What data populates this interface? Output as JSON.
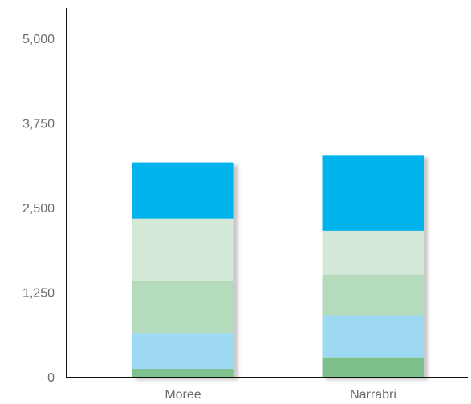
{
  "chart_data": {
    "type": "bar",
    "stacked": true,
    "title": "",
    "xlabel": "",
    "ylabel": "",
    "ylim": [
      0,
      5000
    ],
    "yticks": [
      0,
      1250,
      2500,
      3750,
      5000
    ],
    "ytick_labels": [
      "0",
      "1,250",
      "2,500",
      "3,750",
      "5,000"
    ],
    "categories": [
      "Moree",
      "Narrabri"
    ],
    "series": [
      {
        "color": "#7fc18d",
        "values": [
          130,
          300
        ]
      },
      {
        "color": "#9dd9f3",
        "values": [
          520,
          620
        ]
      },
      {
        "color": "#b5dbbd",
        "values": [
          780,
          600
        ]
      },
      {
        "color": "#d3e8d7",
        "values": [
          920,
          650
        ]
      },
      {
        "color": "#00b3ec",
        "values": [
          830,
          1120
        ]
      }
    ],
    "grid": false,
    "legend": "none"
  }
}
